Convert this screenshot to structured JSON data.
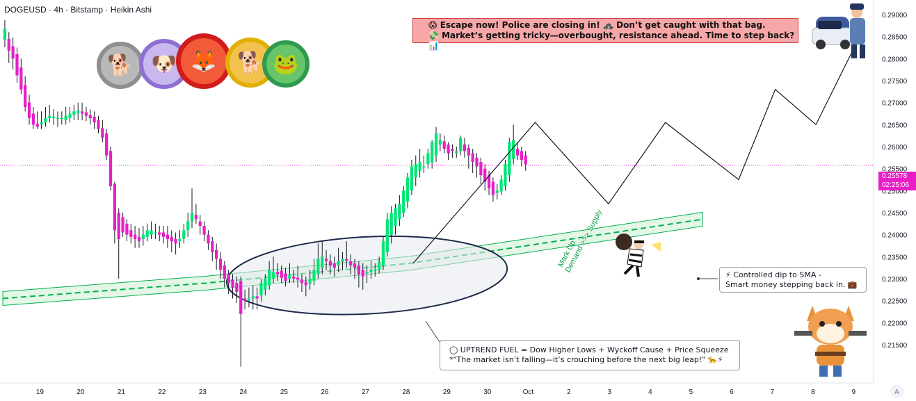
{
  "header": {
    "title": "DOGEUSD · 4h · Bitstamp · Heikin Ashi"
  },
  "price_label": {
    "price": "0.25578",
    "countdown": "02:25:06"
  },
  "banner": {
    "line1": "😱 Escape now! Police are closing in! 🚓 Don’t get caught with that bag.",
    "line2": "💸 Market’s getting tricky—overbought, resistance ahead. Time to step back? 📊"
  },
  "annotations": {
    "markup_line1": "Mark Up",
    "markup_line2": "Demand >>> Supply",
    "sma_line1": "⚡ Controlled dip to SMA -",
    "sma_line2": "Smart money stepping back in. 💼",
    "fuel_line1": "◯ UPTREND FUEL = Dow Higher Lows + Wyckoff Cause + Price Squeeze",
    "fuel_line2": "*\"The market isn’t falling—it’s crouching before the next big leap!\" 🐆⚡"
  },
  "icons": [
    "coin-icon-floki",
    "coin-icon-samoyed",
    "coin-icon-shib",
    "coin-icon-doge",
    "coin-icon-pepe",
    "police-icon",
    "thief-icon",
    "shiba-cowboy-icon",
    "tradingview-logo-icon"
  ],
  "colors": {
    "bull": "#00e676",
    "bear": "#e91ec9",
    "sma": "#00b050",
    "band": "#d8f3dc",
    "price_line": "#e91ec9"
  },
  "chart_data": {
    "type": "candlestick",
    "title": "DOGEUSD · 4h · Bitstamp · Heikin Ashi",
    "ylim": [
      0.2095,
      0.2925
    ],
    "yticks": [
      "0.29000",
      "0.28500",
      "0.28000",
      "0.27500",
      "0.27000",
      "0.26500",
      "0.26000",
      "0.25500",
      "0.25000",
      "0.24500",
      "0.24000",
      "0.23500",
      "0.23000",
      "0.22500",
      "0.22000",
      "0.21500"
    ],
    "xticks": [
      "19",
      "20",
      "21",
      "22",
      "23",
      "24",
      "25",
      "26",
      "27",
      "28",
      "29",
      "30",
      "Oct",
      "2",
      "3",
      "4",
      "5",
      "6",
      "7",
      "8",
      "9"
    ],
    "last_price": 0.25578,
    "candles": [
      [
        0.2843,
        0.2868,
        0.2887,
        0.2826
      ],
      [
        0.2845,
        0.2818,
        0.286,
        0.279
      ],
      [
        0.2828,
        0.28,
        0.2848,
        0.2775
      ],
      [
        0.281,
        0.2762,
        0.2825,
        0.2745
      ],
      [
        0.278,
        0.273,
        0.28,
        0.272
      ],
      [
        0.274,
        0.269,
        0.276,
        0.268
      ],
      [
        0.27,
        0.2665,
        0.2718,
        0.265
      ],
      [
        0.2675,
        0.265,
        0.269,
        0.264
      ],
      [
        0.2652,
        0.2645,
        0.268,
        0.264
      ],
      [
        0.265,
        0.2655,
        0.268,
        0.264
      ],
      [
        0.2655,
        0.2665,
        0.269,
        0.2645
      ],
      [
        0.2665,
        0.267,
        0.2695,
        0.2655
      ],
      [
        0.2665,
        0.2668,
        0.2685,
        0.265
      ],
      [
        0.2665,
        0.2665,
        0.268,
        0.2645
      ],
      [
        0.2665,
        0.2665,
        0.268,
        0.265
      ],
      [
        0.266,
        0.267,
        0.269,
        0.265
      ],
      [
        0.2665,
        0.2675,
        0.269,
        0.2655
      ],
      [
        0.2672,
        0.268,
        0.2695,
        0.266
      ],
      [
        0.2676,
        0.2682,
        0.27,
        0.266
      ],
      [
        0.268,
        0.2675,
        0.27,
        0.266
      ],
      [
        0.2678,
        0.267,
        0.269,
        0.2658
      ],
      [
        0.2672,
        0.2665,
        0.2685,
        0.265
      ],
      [
        0.2668,
        0.2655,
        0.268,
        0.264
      ],
      [
        0.266,
        0.264,
        0.267,
        0.263
      ],
      [
        0.2642,
        0.262,
        0.266,
        0.261
      ],
      [
        0.263,
        0.258,
        0.264,
        0.257
      ],
      [
        0.259,
        0.251,
        0.26,
        0.25
      ],
      [
        0.2515,
        0.241,
        0.252,
        0.238
      ],
      [
        0.245,
        0.239,
        0.246,
        0.23
      ],
      [
        0.244,
        0.2405,
        0.245,
        0.2395
      ],
      [
        0.2425,
        0.24,
        0.2435,
        0.2385
      ],
      [
        0.241,
        0.2395,
        0.2425,
        0.238
      ],
      [
        0.24,
        0.239,
        0.242,
        0.237
      ],
      [
        0.2395,
        0.2385,
        0.2415,
        0.237
      ],
      [
        0.239,
        0.24,
        0.242,
        0.2375
      ],
      [
        0.2395,
        0.241,
        0.2425,
        0.2385
      ],
      [
        0.24,
        0.241,
        0.243,
        0.239
      ],
      [
        0.2405,
        0.2405,
        0.2425,
        0.239
      ],
      [
        0.2405,
        0.24,
        0.242,
        0.2385
      ],
      [
        0.2405,
        0.2395,
        0.242,
        0.238
      ],
      [
        0.24,
        0.239,
        0.242,
        0.237
      ],
      [
        0.2395,
        0.2385,
        0.241,
        0.236
      ],
      [
        0.239,
        0.238,
        0.2405,
        0.2355
      ],
      [
        0.2385,
        0.239,
        0.241,
        0.237
      ],
      [
        0.239,
        0.241,
        0.2425,
        0.238
      ],
      [
        0.241,
        0.243,
        0.245,
        0.2395
      ],
      [
        0.243,
        0.245,
        0.2505,
        0.2415
      ],
      [
        0.2445,
        0.2435,
        0.247,
        0.2425
      ],
      [
        0.243,
        0.242,
        0.2445,
        0.24
      ],
      [
        0.242,
        0.24,
        0.243,
        0.2385
      ],
      [
        0.24,
        0.238,
        0.241,
        0.2365
      ],
      [
        0.2385,
        0.236,
        0.2395,
        0.234
      ],
      [
        0.2365,
        0.2345,
        0.238,
        0.232
      ],
      [
        0.2345,
        0.232,
        0.236,
        0.23
      ],
      [
        0.233,
        0.23,
        0.234,
        0.228
      ],
      [
        0.231,
        0.229,
        0.232,
        0.2265
      ],
      [
        0.2298,
        0.228,
        0.231,
        0.2255
      ],
      [
        0.229,
        0.227,
        0.2305,
        0.2245
      ],
      [
        0.2295,
        0.222,
        0.2305,
        0.21
      ],
      [
        0.2255,
        0.225,
        0.2275,
        0.223
      ],
      [
        0.225,
        0.2255,
        0.228,
        0.2235
      ],
      [
        0.2255,
        0.226,
        0.2285,
        0.223
      ],
      [
        0.226,
        0.2255,
        0.228,
        0.223
      ],
      [
        0.2262,
        0.229,
        0.23,
        0.2248
      ],
      [
        0.2275,
        0.23,
        0.231,
        0.2262
      ],
      [
        0.2285,
        0.232,
        0.234,
        0.2275
      ],
      [
        0.23,
        0.2315,
        0.235,
        0.229
      ],
      [
        0.2315,
        0.231,
        0.2335,
        0.2295
      ],
      [
        0.2318,
        0.2302,
        0.233,
        0.229
      ],
      [
        0.2312,
        0.2295,
        0.2325,
        0.2282
      ],
      [
        0.23,
        0.231,
        0.2335,
        0.229
      ],
      [
        0.2305,
        0.23,
        0.232,
        0.229
      ],
      [
        0.2302,
        0.2298,
        0.233,
        0.228
      ],
      [
        0.2298,
        0.229,
        0.231,
        0.227
      ],
      [
        0.2293,
        0.2285,
        0.2305,
        0.226
      ],
      [
        0.2288,
        0.23,
        0.232,
        0.2275
      ],
      [
        0.2295,
        0.232,
        0.2345,
        0.2285
      ],
      [
        0.231,
        0.2345,
        0.238,
        0.23
      ],
      [
        0.2325,
        0.235,
        0.2385,
        0.231
      ],
      [
        0.2345,
        0.234,
        0.2365,
        0.232
      ],
      [
        0.234,
        0.233,
        0.2355,
        0.231
      ],
      [
        0.2335,
        0.2325,
        0.235,
        0.2305
      ],
      [
        0.233,
        0.234,
        0.237,
        0.2315
      ],
      [
        0.2338,
        0.2345,
        0.236,
        0.232
      ],
      [
        0.2345,
        0.234,
        0.2385,
        0.2325
      ],
      [
        0.234,
        0.233,
        0.2355,
        0.231
      ],
      [
        0.2335,
        0.2325,
        0.2345,
        0.23
      ],
      [
        0.233,
        0.231,
        0.234,
        0.228
      ],
      [
        0.232,
        0.2305,
        0.2335,
        0.2275
      ],
      [
        0.2312,
        0.2315,
        0.233,
        0.229
      ],
      [
        0.2315,
        0.232,
        0.234,
        0.23
      ],
      [
        0.2318,
        0.2322,
        0.2335,
        0.2305
      ],
      [
        0.232,
        0.2338,
        0.235,
        0.2312
      ],
      [
        0.233,
        0.2385,
        0.2395,
        0.232
      ],
      [
        0.236,
        0.2435,
        0.245,
        0.235
      ],
      [
        0.24,
        0.245,
        0.2465,
        0.238
      ],
      [
        0.242,
        0.246,
        0.247,
        0.24
      ],
      [
        0.2435,
        0.247,
        0.249,
        0.242
      ],
      [
        0.245,
        0.25,
        0.251,
        0.244
      ],
      [
        0.2475,
        0.253,
        0.254,
        0.246
      ],
      [
        0.25,
        0.2555,
        0.257,
        0.249
      ],
      [
        0.253,
        0.256,
        0.258,
        0.251
      ],
      [
        0.2545,
        0.2565,
        0.2595,
        0.253
      ],
      [
        0.2555,
        0.2555,
        0.258,
        0.254
      ],
      [
        0.256,
        0.2585,
        0.2595,
        0.255
      ],
      [
        0.2565,
        0.261,
        0.2615,
        0.255
      ],
      [
        0.258,
        0.263,
        0.2645,
        0.2565
      ],
      [
        0.2605,
        0.2615,
        0.263,
        0.259
      ],
      [
        0.2612,
        0.2595,
        0.2625,
        0.2585
      ],
      [
        0.2605,
        0.2585,
        0.261,
        0.257
      ],
      [
        0.2595,
        0.259,
        0.2605,
        0.2575
      ],
      [
        0.2585,
        0.259,
        0.26,
        0.2575
      ],
      [
        0.259,
        0.262,
        0.2625,
        0.258
      ],
      [
        0.2605,
        0.259,
        0.262,
        0.2575
      ],
      [
        0.2597,
        0.258,
        0.2605,
        0.255
      ],
      [
        0.2585,
        0.2565,
        0.2595,
        0.254
      ],
      [
        0.2575,
        0.2555,
        0.2585,
        0.253
      ],
      [
        0.2565,
        0.2535,
        0.2575,
        0.2515
      ],
      [
        0.255,
        0.252,
        0.256,
        0.25
      ],
      [
        0.2535,
        0.2505,
        0.2545,
        0.249
      ],
      [
        0.252,
        0.249,
        0.253,
        0.2475
      ],
      [
        0.2495,
        0.25,
        0.2515,
        0.248
      ],
      [
        0.2498,
        0.2525,
        0.2535,
        0.249
      ],
      [
        0.251,
        0.256,
        0.257,
        0.25
      ],
      [
        0.2535,
        0.261,
        0.262,
        0.252
      ],
      [
        0.2572,
        0.2615,
        0.265,
        0.256
      ],
      [
        0.2595,
        0.258,
        0.261,
        0.257
      ],
      [
        0.259,
        0.257,
        0.26,
        0.2555
      ],
      [
        0.258,
        0.256,
        0.259,
        0.2545
      ]
    ],
    "sma": [
      [
        0,
        0.2255
      ],
      [
        50,
        0.229
      ],
      [
        100,
        0.2335
      ],
      [
        172,
        0.2435
      ]
    ],
    "ellipse_zone": {
      "x_from": 55,
      "x_to": 124,
      "y_from": 0.222,
      "y_to": 0.2395
    },
    "projection_path": [
      [
        100,
        0.2335
      ],
      [
        130,
        0.2655
      ],
      [
        148,
        0.247
      ],
      [
        162,
        0.2655
      ],
      [
        180,
        0.2525
      ],
      [
        189,
        0.273
      ],
      [
        199,
        0.265
      ],
      [
        210,
        0.2855
      ]
    ],
    "x_tick_index": [
      4,
      14,
      24,
      34,
      44,
      54,
      64,
      74,
      84,
      94,
      104,
      114,
      124,
      134,
      144,
      154,
      164,
      174,
      184,
      194,
      204
    ]
  }
}
